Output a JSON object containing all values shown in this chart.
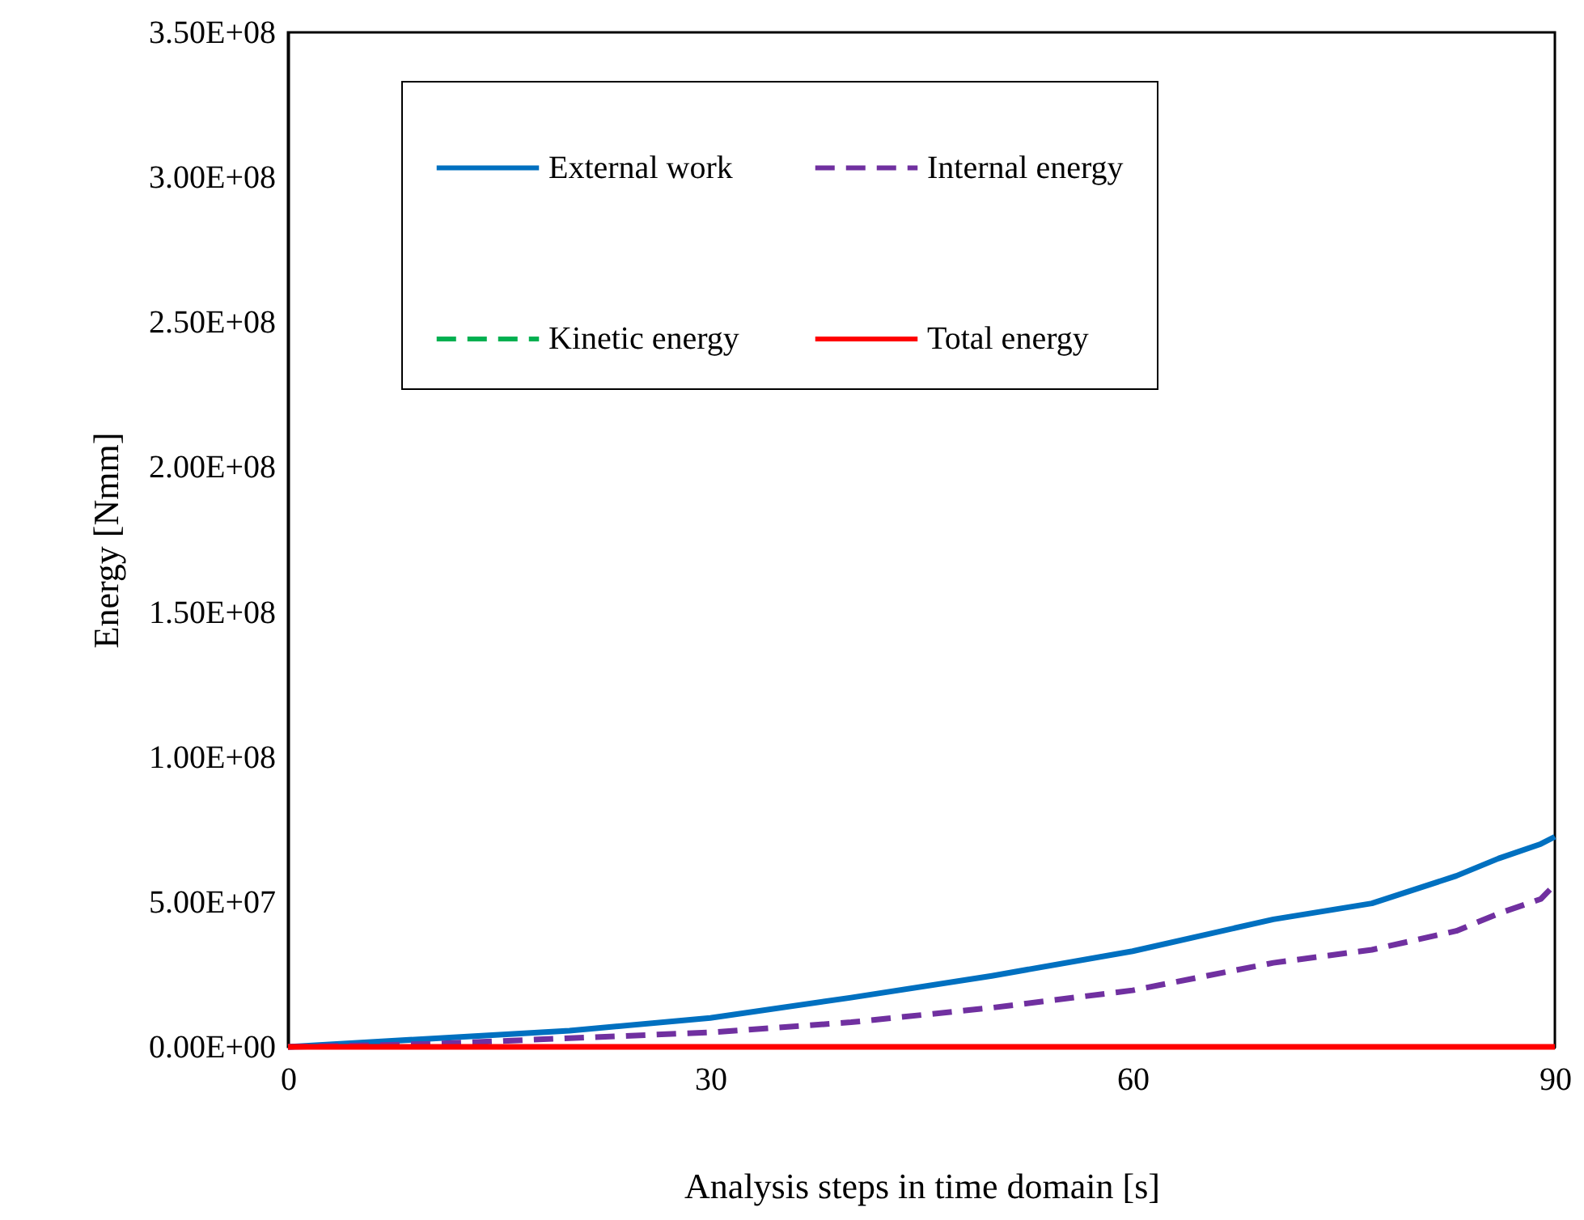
{
  "chart_data": {
    "type": "line",
    "xlabel": "Analysis steps in time domain [s]",
    "ylabel": "Energy [Nmm]",
    "xlim": [
      0,
      90
    ],
    "xticks": [
      0,
      30,
      60,
      90
    ],
    "ylim": [
      0,
      350000000
    ],
    "yticks": [
      {
        "value": 0,
        "label": "0.00E+00"
      },
      {
        "value": 50000000,
        "label": "5.00E+07"
      },
      {
        "value": 100000000,
        "label": "1.00E+08"
      },
      {
        "value": 150000000,
        "label": "1.50E+08"
      },
      {
        "value": 200000000,
        "label": "2.00E+08"
      },
      {
        "value": 250000000,
        "label": "2.50E+08"
      },
      {
        "value": 300000000,
        "label": "3.00E+08"
      },
      {
        "value": 350000000,
        "label": "3.50E+08"
      }
    ],
    "grid": false,
    "legend": "top left",
    "series": [
      {
        "name": "External work",
        "color": "#0070c0",
        "line_style": "solid",
        "x": [
          0,
          10,
          20,
          30,
          40,
          50,
          60,
          70,
          77,
          83,
          86,
          89,
          90
        ],
        "values": [
          0,
          2800000,
          5600000,
          10000000,
          17000000,
          24500000,
          33000000,
          44000000,
          49500000,
          59000000,
          65000000,
          70000000,
          72500000
        ]
      },
      {
        "name": "Internal energy",
        "color": "#7030a0",
        "line_style": "dashed",
        "x": [
          0,
          10,
          20,
          30,
          40,
          50,
          60,
          70,
          77,
          83,
          86,
          89,
          90
        ],
        "values": [
          0,
          1000000,
          3000000,
          5000000,
          8500000,
          13500000,
          19500000,
          29000000,
          33500000,
          40000000,
          46000000,
          51000000,
          56000000
        ]
      },
      {
        "name": "Kinetic energy",
        "color": "#00b050",
        "line_style": "dashed"
      },
      {
        "name": "Total energy",
        "color": "#ff0000",
        "line_style": "solid",
        "x": [
          0,
          90
        ],
        "values": [
          0,
          0
        ]
      }
    ]
  }
}
